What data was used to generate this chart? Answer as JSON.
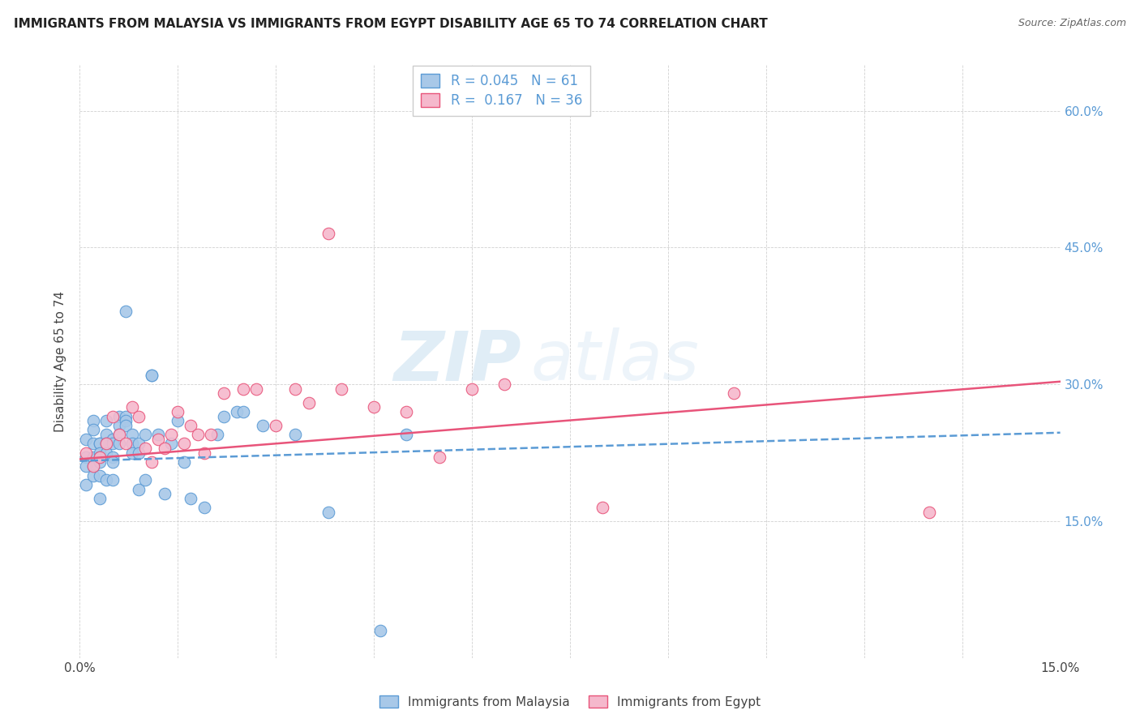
{
  "title": "IMMIGRANTS FROM MALAYSIA VS IMMIGRANTS FROM EGYPT DISABILITY AGE 65 TO 74 CORRELATION CHART",
  "source": "Source: ZipAtlas.com",
  "ylabel": "Disability Age 65 to 74",
  "xlim": [
    0.0,
    0.15
  ],
  "ylim": [
    0.0,
    0.65
  ],
  "x_ticks": [
    0.0,
    0.015,
    0.03,
    0.045,
    0.06,
    0.075,
    0.09,
    0.105,
    0.12,
    0.135,
    0.15
  ],
  "y_ticks": [
    0.0,
    0.15,
    0.3,
    0.45,
    0.6
  ],
  "malaysia_R": 0.045,
  "malaysia_N": 61,
  "egypt_R": 0.167,
  "egypt_N": 36,
  "malaysia_color": "#a8c8e8",
  "egypt_color": "#f5b8cc",
  "malaysia_line_color": "#5b9bd5",
  "egypt_line_color": "#e8547a",
  "malaysia_x": [
    0.001,
    0.001,
    0.001,
    0.001,
    0.002,
    0.002,
    0.002,
    0.002,
    0.002,
    0.002,
    0.003,
    0.003,
    0.003,
    0.003,
    0.003,
    0.003,
    0.003,
    0.004,
    0.004,
    0.004,
    0.004,
    0.004,
    0.005,
    0.005,
    0.005,
    0.005,
    0.005,
    0.006,
    0.006,
    0.006,
    0.006,
    0.007,
    0.007,
    0.007,
    0.007,
    0.008,
    0.008,
    0.008,
    0.009,
    0.009,
    0.009,
    0.01,
    0.01,
    0.011,
    0.011,
    0.012,
    0.013,
    0.014,
    0.015,
    0.016,
    0.017,
    0.019,
    0.021,
    0.022,
    0.024,
    0.025,
    0.028,
    0.033,
    0.038,
    0.046,
    0.05
  ],
  "malaysia_y": [
    0.24,
    0.22,
    0.21,
    0.19,
    0.26,
    0.25,
    0.235,
    0.22,
    0.21,
    0.2,
    0.235,
    0.235,
    0.225,
    0.22,
    0.215,
    0.2,
    0.175,
    0.26,
    0.245,
    0.235,
    0.225,
    0.195,
    0.24,
    0.235,
    0.22,
    0.215,
    0.195,
    0.265,
    0.255,
    0.245,
    0.235,
    0.38,
    0.265,
    0.26,
    0.255,
    0.245,
    0.235,
    0.225,
    0.235,
    0.225,
    0.185,
    0.245,
    0.195,
    0.31,
    0.31,
    0.245,
    0.18,
    0.235,
    0.26,
    0.215,
    0.175,
    0.165,
    0.245,
    0.265,
    0.27,
    0.27,
    0.255,
    0.245,
    0.16,
    0.03,
    0.245
  ],
  "egypt_x": [
    0.001,
    0.002,
    0.003,
    0.004,
    0.005,
    0.006,
    0.007,
    0.008,
    0.009,
    0.01,
    0.011,
    0.012,
    0.013,
    0.014,
    0.015,
    0.016,
    0.017,
    0.018,
    0.019,
    0.02,
    0.022,
    0.025,
    0.027,
    0.03,
    0.033,
    0.035,
    0.038,
    0.04,
    0.045,
    0.05,
    0.055,
    0.06,
    0.065,
    0.08,
    0.1,
    0.13
  ],
  "egypt_y": [
    0.225,
    0.21,
    0.22,
    0.235,
    0.265,
    0.245,
    0.235,
    0.275,
    0.265,
    0.23,
    0.215,
    0.24,
    0.23,
    0.245,
    0.27,
    0.235,
    0.255,
    0.245,
    0.225,
    0.245,
    0.29,
    0.295,
    0.295,
    0.255,
    0.295,
    0.28,
    0.465,
    0.295,
    0.275,
    0.27,
    0.22,
    0.295,
    0.3,
    0.165,
    0.29,
    0.16
  ],
  "malaysia_trend_x": [
    0.0,
    0.15
  ],
  "malaysia_trend_y": [
    0.216,
    0.247
  ],
  "egypt_trend_x": [
    0.0,
    0.15
  ],
  "egypt_trend_y": [
    0.218,
    0.303
  ]
}
